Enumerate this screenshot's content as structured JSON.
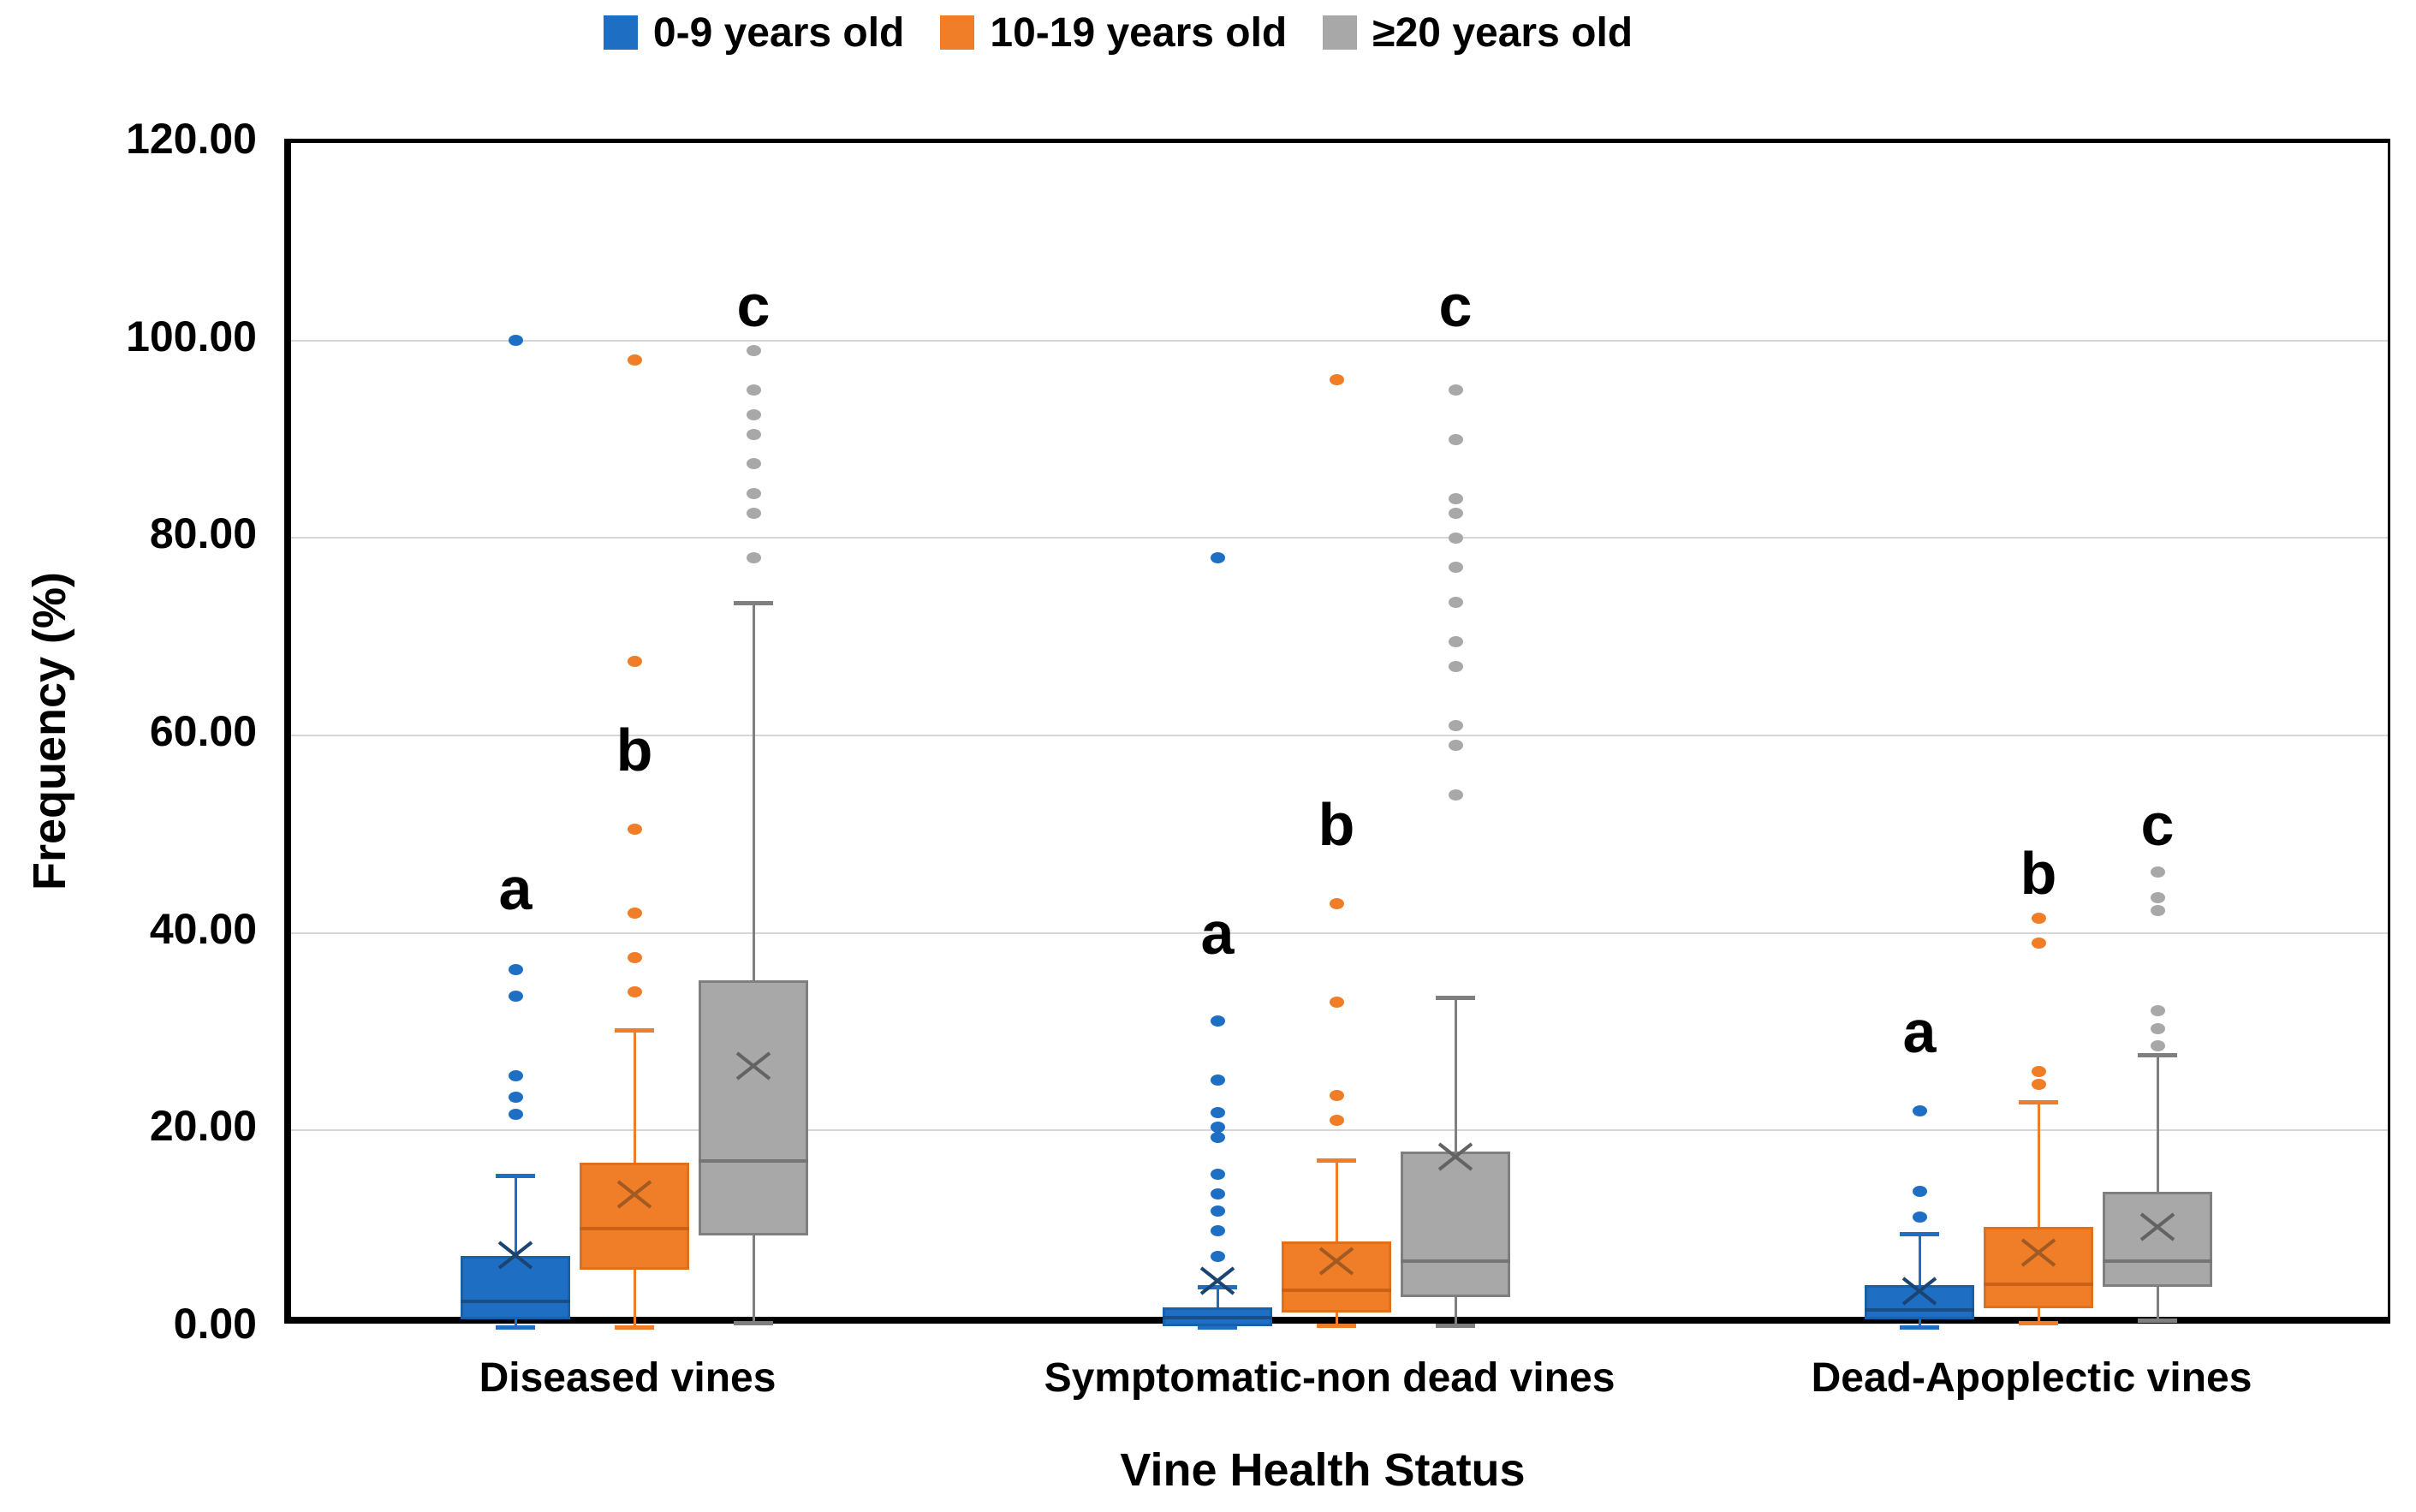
{
  "legend": {
    "items": [
      {
        "label": "0-9 years old",
        "color": "#1e6fc4"
      },
      {
        "label": "10-19 years old",
        "color": "#f07e28"
      },
      {
        "label": "≥20 years old",
        "color": "#a8a8a8"
      }
    ]
  },
  "y_axis": {
    "title": "Frequency (%)",
    "ticks": [
      {
        "value": 0,
        "label": "0.00"
      },
      {
        "value": 20,
        "label": "20.00"
      },
      {
        "value": 40,
        "label": "40.00"
      },
      {
        "value": 60,
        "label": "60.00"
      },
      {
        "value": 80,
        "label": "80.00"
      },
      {
        "value": 100,
        "label": "100.00"
      },
      {
        "value": 120,
        "label": "120.00"
      }
    ]
  },
  "x_axis": {
    "title": "Vine Health Status",
    "categories": [
      "Diseased vines",
      "Symptomatic-non dead vines",
      "Dead-Apoplectic vines"
    ]
  },
  "chart_data": {
    "type": "box",
    "title": "",
    "xlabel": "Vine Health Status",
    "ylabel": "Frequency (%)",
    "ylim": [
      0,
      120
    ],
    "grid": true,
    "legend_position": "top-center",
    "categories": [
      "Diseased vines",
      "Symptomatic-non dead vines",
      "Dead-Apoplectic vines"
    ],
    "series": [
      {
        "name": "0-9 years old",
        "fill": "#1e6fc4",
        "edge": "#1760ab",
        "whisker": "#1e6fc4",
        "median_color": "#1a4f86",
        "mean_color": "#1b4473"
      },
      {
        "name": "10-19 years old",
        "fill": "#f07e28",
        "edge": "#e0711c",
        "whisker": "#f07e28",
        "median_color": "#c96217",
        "mean_color": "#a05a22"
      },
      {
        "name": "≥20 years old",
        "fill": "#a8a8a8",
        "edge": "#7f7f7f",
        "whisker": "#7f7f7f",
        "median_color": "#757575",
        "mean_color": "#636363"
      }
    ],
    "groups": [
      {
        "category": "Diseased vines",
        "boxes": [
          {
            "series": "0-9 years old",
            "whisker_low": 0.1,
            "q1": 0.9,
            "median": 2.7,
            "q3": 7.3,
            "whisker_high": 15.4,
            "mean": 7.4,
            "outliers": [
              21.6,
              23.4,
              25.5,
              33.6,
              36.3,
              100
            ],
            "letter": "a",
            "letter_y": 44.5
          },
          {
            "series": "10-19 years old",
            "whisker_low": 0.1,
            "q1": 5.9,
            "median": 10.1,
            "q3": 16.7,
            "whisker_high": 30.2,
            "mean": 13.5,
            "outliers": [
              34,
              37.5,
              42,
              50.5,
              67.5,
              98
            ],
            "letter": "b",
            "letter_y": 58.5
          },
          {
            "series": "≥20 years old",
            "whisker_low": 0.5,
            "q1": 9.4,
            "median": 16.9,
            "q3": 35.2,
            "whisker_high": 73.4,
            "mean": 26.5,
            "outliers": [
              78,
              82.5,
              84.5,
              87.5,
              90.5,
              92.5,
              95,
              99
            ],
            "letter": "c",
            "letter_y": 103.5
          }
        ]
      },
      {
        "category": "Symptomatic-non dead vines",
        "boxes": [
          {
            "series": "0-9 years old",
            "whisker_low": 0.1,
            "q1": 0.2,
            "median": 1.0,
            "q3": 2.1,
            "whisker_high": 4.2,
            "mean": 4.8,
            "outliers": [
              7.2,
              9.8,
              11.8,
              13.6,
              15.6,
              19.3,
              20.3,
              21.8,
              25.1,
              31.1,
              78
            ],
            "letter": "a",
            "letter_y": 40
          },
          {
            "series": "10-19 years old",
            "whisker_low": 0.3,
            "q1": 1.6,
            "median": 3.8,
            "q3": 8.8,
            "whisker_high": 17.0,
            "mean": 6.8,
            "outliers": [
              21,
              23.5,
              33,
              43,
              96
            ],
            "letter": "b",
            "letter_y": 51
          },
          {
            "series": "≥20 years old",
            "whisker_low": 0.3,
            "q1": 3.1,
            "median": 6.8,
            "q3": 17.9,
            "whisker_high": 33.5,
            "mean": 17.3,
            "outliers": [
              54,
              59,
              61,
              67,
              69.5,
              73.5,
              77,
              80,
              82.5,
              84,
              90,
              95
            ],
            "letter": "c",
            "letter_y": 103.5
          }
        ]
      },
      {
        "category": "Dead-Apoplectic vines",
        "boxes": [
          {
            "series": "0-9 years old",
            "whisker_low": 0.1,
            "q1": 0.9,
            "median": 1.8,
            "q3": 4.3,
            "whisker_high": 9.5,
            "mean": 3.7,
            "outliers": [
              11.2,
              13.8,
              22
            ],
            "letter": "a",
            "letter_y": 30
          },
          {
            "series": "10-19 years old",
            "whisker_low": 0.5,
            "q1": 2.0,
            "median": 4.4,
            "q3": 10.2,
            "whisker_high": 22.9,
            "mean": 7.6,
            "outliers": [
              24.7,
              26,
              39,
              41.5
            ],
            "letter": "b",
            "letter_y": 46
          },
          {
            "series": "≥20 years old",
            "whisker_low": 0.8,
            "q1": 4.2,
            "median": 6.8,
            "q3": 13.8,
            "whisker_high": 27.7,
            "mean": 10.2,
            "outliers": [
              28.6,
              30.3,
              32.1,
              42.3,
              43.6,
              46.2
            ],
            "letter": "c",
            "letter_y": 51
          }
        ]
      }
    ]
  }
}
